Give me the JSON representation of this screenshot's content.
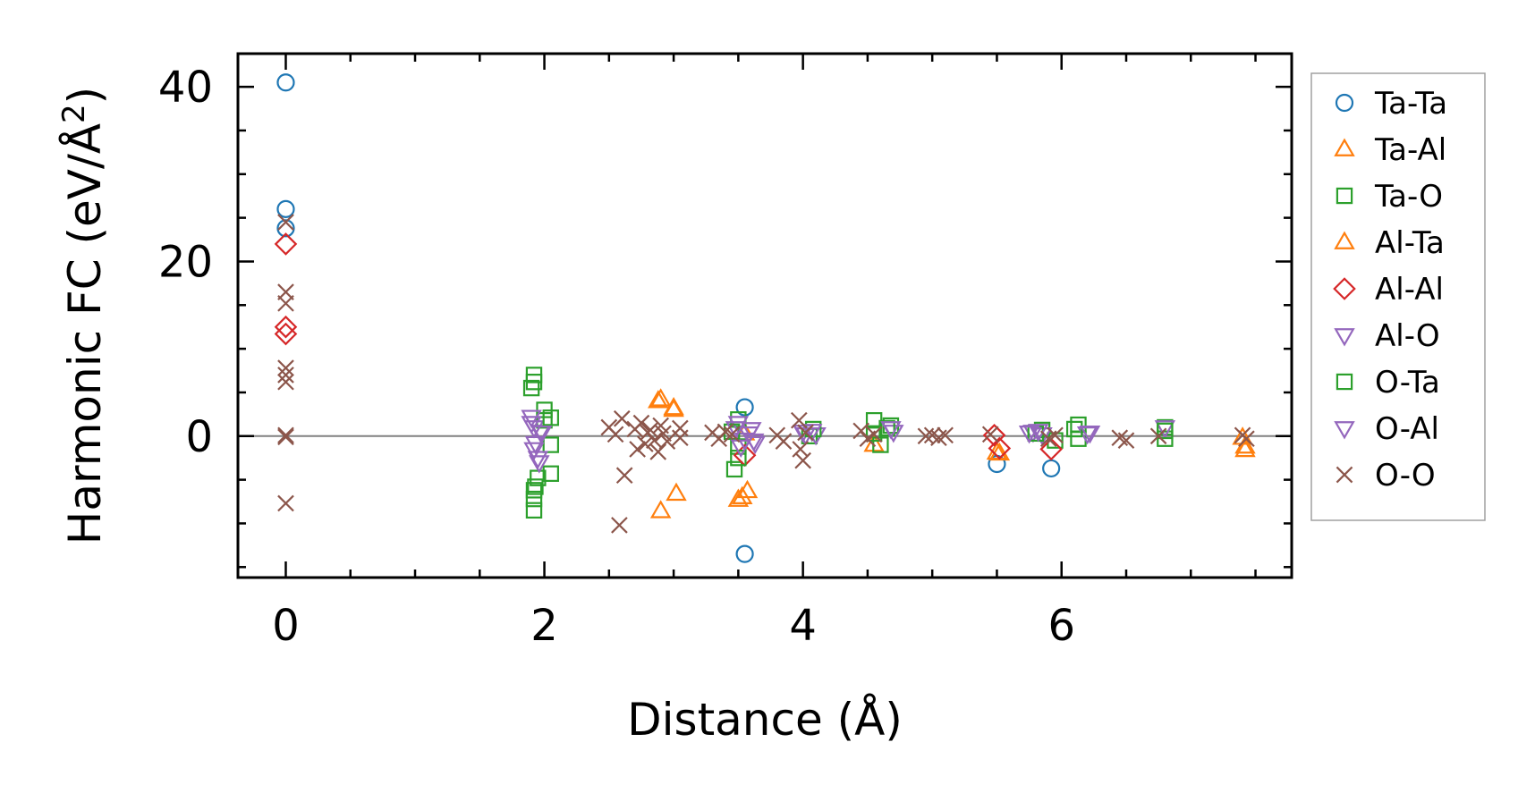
{
  "chart_data": {
    "type": "scatter",
    "xlabel": "Distance (Å)",
    "ylabel": "Harmonic FC (eV/Å",
    "ylabel_sup": "2",
    "ylabel_suffix": ")",
    "xlim": [
      -0.37,
      7.78
    ],
    "ylim": [
      -16.2,
      43.8
    ],
    "xticks": [
      0,
      2,
      4,
      6
    ],
    "xtick_labels": [
      "0",
      "2",
      "4",
      "6"
    ],
    "yticks": [
      0,
      20,
      40
    ],
    "ytick_labels": [
      "0",
      "20",
      "40"
    ],
    "zero_line": true,
    "grid": false,
    "legend_position": "right-outside-top",
    "series": [
      {
        "name": "Ta-Ta",
        "marker": "circle",
        "color": "#1f77b4",
        "x": [
          0,
          0,
          0,
          3.55,
          3.55,
          5.5,
          5.92
        ],
        "y": [
          40.5,
          26,
          23.8,
          3.3,
          -13.5,
          -3.2,
          -3.7
        ]
      },
      {
        "name": "Ta-Al",
        "marker": "triangle-up",
        "color": "#ff7f0e",
        "x": [
          2.9,
          3.0,
          2.9,
          3.02,
          3.5,
          3.57,
          3.55,
          5.5,
          4.55,
          7.42,
          7.4
        ],
        "y": [
          4.2,
          3.2,
          -8.6,
          -6.6,
          -7.3,
          -6.3,
          0.3,
          -1.9,
          -1.0,
          -1.6,
          -0.2
        ]
      },
      {
        "name": "Ta-O",
        "marker": "square",
        "color": "#2ca02c",
        "x": [
          1.92,
          1.92,
          1.92,
          1.92,
          1.92,
          2.0,
          2.0,
          2.05,
          2.05,
          1.95,
          3.5,
          3.5,
          3.47,
          4.05,
          4.55,
          4.6,
          4.68,
          5.85,
          5.95,
          6.13,
          6.13,
          6.8,
          6.8
        ],
        "y": [
          7.0,
          6.2,
          -6.2,
          -7.2,
          -8.5,
          3.0,
          1.8,
          -4.3,
          -1.0,
          -4.8,
          1.9,
          -1.2,
          -3.8,
          0.0,
          1.8,
          -1.0,
          1.2,
          0.7,
          -0.5,
          1.3,
          -0.3,
          1.0,
          -0.3
        ]
      },
      {
        "name": "Al-Ta",
        "marker": "triangle-up",
        "color": "#ff7f0e",
        "x": [
          2.88,
          3.0,
          3.53,
          5.52,
          7.42
        ],
        "y": [
          4.0,
          3.0,
          -7.0,
          -2.0,
          -1.2
        ]
      },
      {
        "name": "Al-Al",
        "marker": "diamond",
        "color": "#d62728",
        "x": [
          0,
          0,
          0,
          3.55,
          5.48,
          5.52,
          5.92
        ],
        "y": [
          22.0,
          12.5,
          11.7,
          -2.2,
          0.1,
          -1.4,
          -1.5
        ]
      },
      {
        "name": "Al-O",
        "marker": "triangle-down",
        "color": "#9467bd",
        "x": [
          1.9,
          1.92,
          1.92,
          1.95,
          1.97,
          3.5,
          3.55,
          3.6,
          3.63,
          4.0,
          4.1,
          4.7,
          5.78,
          5.85,
          6.2,
          6.8
        ],
        "y": [
          2.2,
          1.0,
          -1.5,
          -2.5,
          0.5,
          1.5,
          -0.4,
          0.8,
          -0.8,
          0.5,
          0.2,
          0.5,
          0.5,
          0.2,
          0.3,
          1.0
        ]
      },
      {
        "name": "O-Ta",
        "marker": "square",
        "color": "#2ca02c",
        "x": [
          1.9,
          1.93,
          2.05,
          3.45,
          3.5,
          4.08,
          4.55,
          4.65,
          5.8,
          6.1,
          6.8
        ],
        "y": [
          5.5,
          -5.8,
          2.1,
          0.5,
          -2.5,
          0.8,
          0.3,
          0.9,
          0.3,
          0.8,
          0.6
        ]
      },
      {
        "name": "O-Al",
        "marker": "triangle-down",
        "color": "#9467bd",
        "x": [
          1.9,
          1.93,
          1.96,
          1.98,
          3.48,
          3.52,
          3.58,
          3.62,
          4.02,
          4.07,
          4.68,
          5.75,
          5.82,
          6.22
        ],
        "y": [
          1.5,
          -0.8,
          -3.0,
          0.4,
          0.9,
          -1.2,
          0.3,
          -0.5,
          0.2,
          0.6,
          0.9,
          0.4,
          0.6,
          0.4
        ]
      },
      {
        "name": "O-O",
        "marker": "x",
        "color": "#8c564b",
        "x": [
          0,
          0,
          0,
          0,
          0,
          0,
          0,
          0,
          0,
          2.5,
          2.55,
          2.6,
          2.62,
          2.58,
          2.7,
          2.75,
          2.8,
          2.85,
          2.9,
          2.72,
          2.78,
          2.82,
          2.88,
          2.92,
          2.95,
          3.05,
          3.05,
          3.3,
          3.35,
          3.4,
          3.45,
          3.8,
          3.85,
          3.97,
          3.98,
          4.0,
          4.02,
          4.45,
          4.5,
          4.55,
          4.95,
          5.0,
          5.05,
          5.1,
          5.45,
          5.9,
          5.95,
          6.45,
          6.5,
          6.75,
          7.4,
          7.43
        ],
        "y": [
          24.5,
          16.5,
          15.2,
          7.8,
          7.0,
          6.2,
          0.1,
          -0.1,
          -7.7,
          1.0,
          0.2,
          2.0,
          -4.5,
          -10.2,
          0.8,
          1.5,
          0.4,
          -0.5,
          1.2,
          -1.5,
          -0.9,
          0.7,
          -1.8,
          0.3,
          -0.6,
          0.9,
          -0.2,
          0.4,
          -0.3,
          0.5,
          0.2,
          0.1,
          -0.6,
          1.8,
          -1.5,
          -2.8,
          0.4,
          0.6,
          -0.3,
          0.2,
          0.0,
          0.1,
          -0.2,
          0.1,
          0.2,
          -0.3,
          0.1,
          -0.2,
          -0.5,
          0.0,
          0.1,
          -0.3
        ]
      }
    ]
  }
}
